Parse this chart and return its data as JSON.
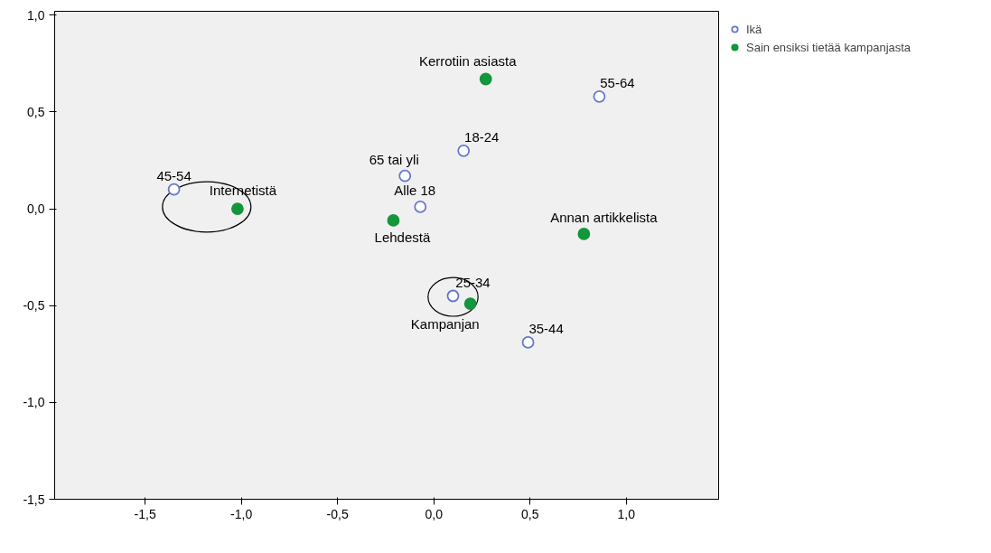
{
  "chart_data": {
    "type": "scatter",
    "marker": "circle",
    "legend": "top right",
    "grid": false,
    "xlim": [
      -1.97,
      1.48
    ],
    "ylim": [
      -1.5,
      1.02
    ],
    "xticks": [
      {
        "value": -1.5,
        "label": "-1,5"
      },
      {
        "value": -1.0,
        "label": "-1,0"
      },
      {
        "value": -0.5,
        "label": "-0,5"
      },
      {
        "value": 0,
        "label": "0,0"
      },
      {
        "value": 0.5,
        "label": "0,5"
      },
      {
        "value": 1.0,
        "label": "1,0"
      }
    ],
    "yticks": [
      {
        "value": -1.5,
        "label": "-1,5"
      },
      {
        "value": -1.0,
        "label": "-1,0"
      },
      {
        "value": -0.5,
        "label": "-0,5"
      },
      {
        "value": 0,
        "label": "0,0"
      },
      {
        "value": 0.5,
        "label": "0,5"
      },
      {
        "value": 1.0,
        "label": "1,0"
      }
    ],
    "series": [
      {
        "name": "Ikä",
        "color": "#6677cc",
        "x": [
          -1.35,
          0.86,
          0.155,
          -0.15,
          -0.07,
          0.1,
          0.49
        ],
        "values": [
          0.1,
          0.58,
          0.3,
          0.17,
          0.01,
          -0.45,
          -0.69
        ]
      },
      {
        "name": "Sain ensiksi tietää kampanjasta",
        "color": "#14963c",
        "x": [
          0.27,
          -1.02,
          -0.21,
          0.78,
          0.19
        ],
        "values": [
          0.67,
          0.0,
          -0.06,
          -0.13,
          -0.49
        ]
      }
    ],
    "annotations": [
      {
        "text": "45-54",
        "x": -1.35,
        "y": 0.1
      },
      {
        "text": "55-64",
        "x": 0.86,
        "y": 0.58
      },
      {
        "text": "18-24",
        "x": 0.155,
        "y": 0.3
      },
      {
        "text": "65 tai yli",
        "x": -0.15,
        "y": 0.17
      },
      {
        "text": "Alle 18",
        "x": -0.07,
        "y": 0.01
      },
      {
        "text": "25-34",
        "x": 0.1,
        "y": -0.45
      },
      {
        "text": "35-44",
        "x": 0.49,
        "y": -0.69
      },
      {
        "text": "Kerrotiin asiasta",
        "x": 0.27,
        "y": 0.67
      },
      {
        "text": "Internetistä",
        "x": -1.02,
        "y": 0.0
      },
      {
        "text": "Lehdestä",
        "x": -0.21,
        "y": -0.06
      },
      {
        "text": "Annan artikkelista",
        "x": 0.78,
        "y": -0.13
      },
      {
        "text": "Kampanjan",
        "x": 0.19,
        "y": -0.49
      }
    ]
  }
}
